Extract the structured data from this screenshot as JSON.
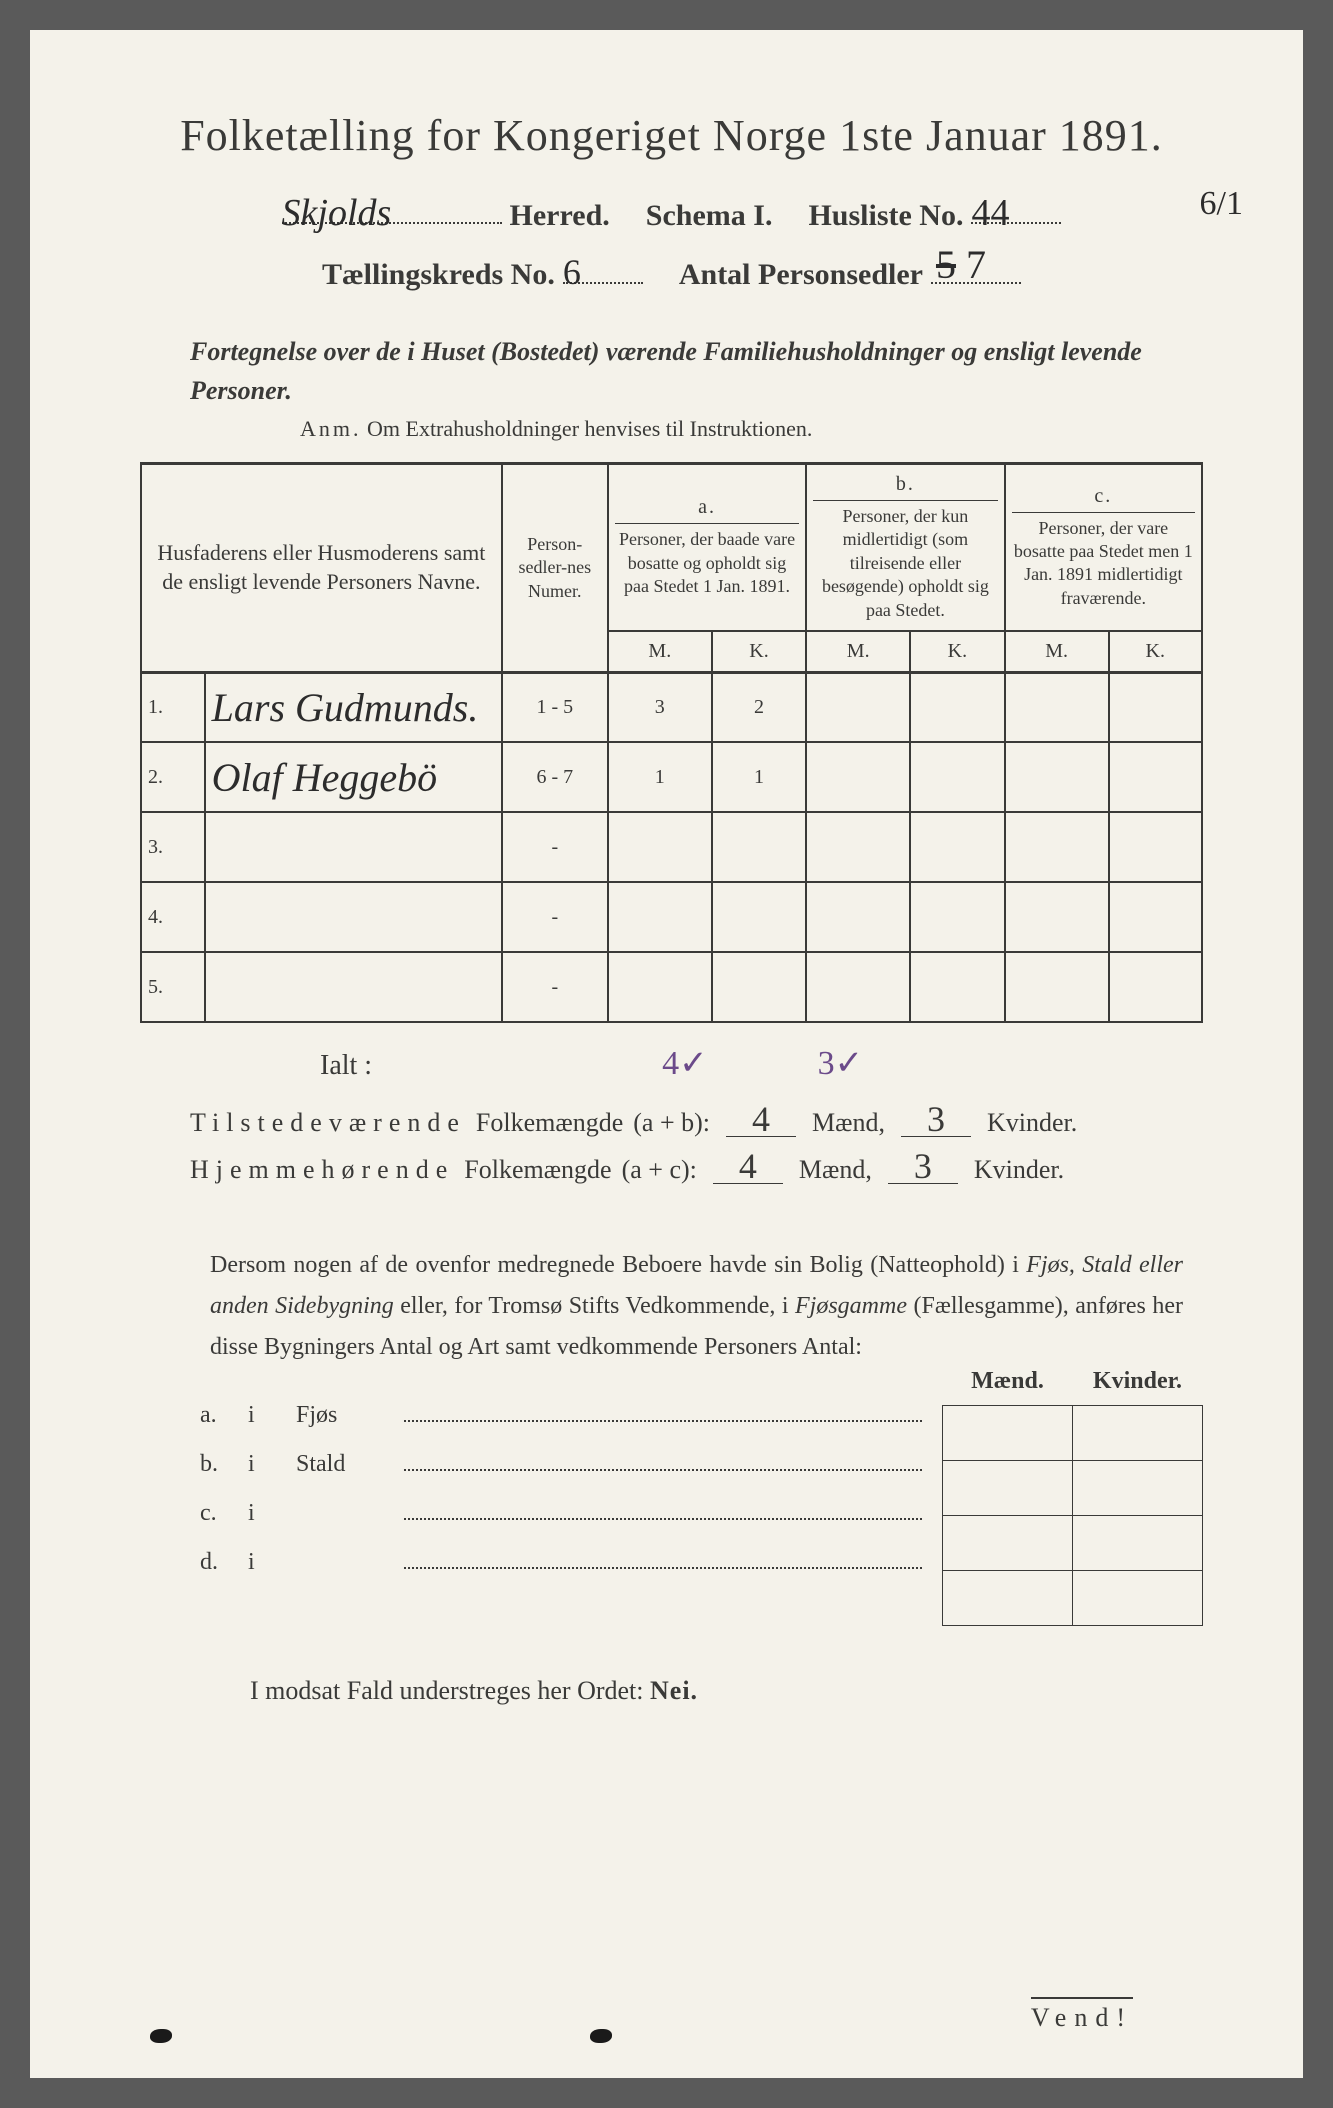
{
  "title": "Folketælling for Kongeriget Norge 1ste Januar 1891.",
  "header": {
    "herred_value": "Skjolds",
    "herred_label": "Herred.",
    "schema_label": "Schema I.",
    "husliste_label": "Husliste No.",
    "husliste_value": "44",
    "kreds_label": "Tællingskreds No.",
    "kreds_value": "6",
    "antal_label": "Antal Personsedler",
    "antal_value_struck": "5",
    "antal_value": "7",
    "margin_note": "6/1"
  },
  "subtitle": "Fortegnelse over de i Huset (Bostedet) værende Familiehusholdninger og ensligt levende Personer.",
  "anm_label": "Anm.",
  "anm_text": "Om Extrahusholdninger henvises til Instruktionen.",
  "table": {
    "head_names": "Husfaderens eller Husmoderens samt de ensligt levende Personers Navne.",
    "head_numer": "Person-sedler-nes Numer.",
    "col_a_letter": "a.",
    "col_a": "Personer, der baade vare bosatte og opholdt sig paa Stedet 1 Jan. 1891.",
    "col_b_letter": "b.",
    "col_b": "Personer, der kun midlertidigt (som tilreisende eller besøgende) opholdt sig paa Stedet.",
    "col_c_letter": "c.",
    "col_c": "Personer, der vare bosatte paa Stedet men 1 Jan. 1891 midlertidigt fraværende.",
    "M": "M.",
    "K": "K.",
    "rows": [
      {
        "n": "1.",
        "name": "Lars Gudmunds.",
        "numer": "1 - 5",
        "aM": "3",
        "aK": "2",
        "bM": "",
        "bK": "",
        "cM": "",
        "cK": ""
      },
      {
        "n": "2.",
        "name": "Olaf Heggebö",
        "numer": "6 - 7",
        "aM": "1",
        "aK": "1",
        "bM": "",
        "bK": "",
        "cM": "",
        "cK": ""
      },
      {
        "n": "3.",
        "name": "",
        "numer": "-",
        "aM": "",
        "aK": "",
        "bM": "",
        "bK": "",
        "cM": "",
        "cK": ""
      },
      {
        "n": "4.",
        "name": "",
        "numer": "-",
        "aM": "",
        "aK": "",
        "bM": "",
        "bK": "",
        "cM": "",
        "cK": ""
      },
      {
        "n": "5.",
        "name": "",
        "numer": "-",
        "aM": "",
        "aK": "",
        "bM": "",
        "bK": "",
        "cM": "",
        "cK": ""
      }
    ]
  },
  "ialt_label": "Ialt :",
  "ialt_m": "4✓",
  "ialt_k": "3✓",
  "sums": {
    "line1_label": "Tilstedeværende",
    "line1_word": "Folkemængde",
    "line1_formula": "(a + b):",
    "line2_label": "Hjemmehørende",
    "line2_word": "Folkemængde",
    "line2_formula": "(a + c):",
    "maend": "Mænd,",
    "kvinder": "Kvinder.",
    "v1m": "4",
    "v1k": "3",
    "v2m": "4",
    "v2k": "3"
  },
  "para": "Dersom nogen af de ovenfor medregnede Beboere havde sin Bolig (Natteophold) i Fjøs, Stald eller anden Sidebygning eller, for Tromsø Stifts Vedkommende, i Fjøsgamme (Fællesgamme), anføres her disse Bygningers Antal og Art samt vedkommende Personers Antal:",
  "outbuildings": {
    "header_m": "Mænd.",
    "header_k": "Kvinder.",
    "rows": [
      {
        "l": "a.",
        "i": "i",
        "t": "Fjøs"
      },
      {
        "l": "b.",
        "i": "i",
        "t": "Stald"
      },
      {
        "l": "c.",
        "i": "i",
        "t": ""
      },
      {
        "l": "d.",
        "i": "i",
        "t": ""
      }
    ]
  },
  "nei_text": "I modsat Fald understreges her Ordet:",
  "nei_word": "Nei.",
  "vend": "Vend!",
  "colors": {
    "paper": "#f4f2ea",
    "ink": "#3a3a38",
    "handwriting": "#2c2c2c",
    "purple_ink": "#6b4a8a"
  }
}
